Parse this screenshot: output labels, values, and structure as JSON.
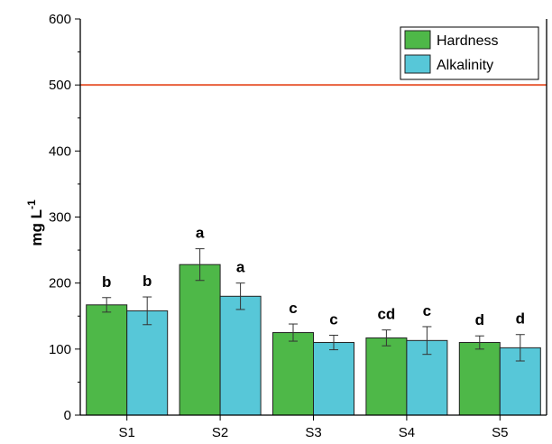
{
  "chart_data": {
    "type": "bar",
    "ylabel_main": "mg L",
    "ylabel_sup": "-1",
    "xlabel": "",
    "ylim": [
      0,
      600
    ],
    "yticks": [
      0,
      100,
      200,
      300,
      400,
      500,
      600
    ],
    "categories": [
      "S1",
      "S2",
      "S3",
      "S4",
      "S5"
    ],
    "series": [
      {
        "name": "Hardness",
        "color": "#4eb848",
        "values": [
          167,
          228,
          125,
          117,
          110
        ],
        "errors": [
          11,
          24,
          13,
          12,
          10
        ],
        "letters": [
          "b",
          "a",
          "c",
          "cd",
          "d"
        ]
      },
      {
        "name": "Alkalinity",
        "color": "#57c7d8",
        "values": [
          158,
          180,
          110,
          113,
          102
        ],
        "errors": [
          21,
          20,
          11,
          21,
          20
        ],
        "letters": [
          "b",
          "a",
          "c",
          "c",
          "d"
        ]
      }
    ],
    "reference_line": {
      "value": 500,
      "color": "#e8603c"
    },
    "legend_position": "top-right",
    "grid": false
  }
}
